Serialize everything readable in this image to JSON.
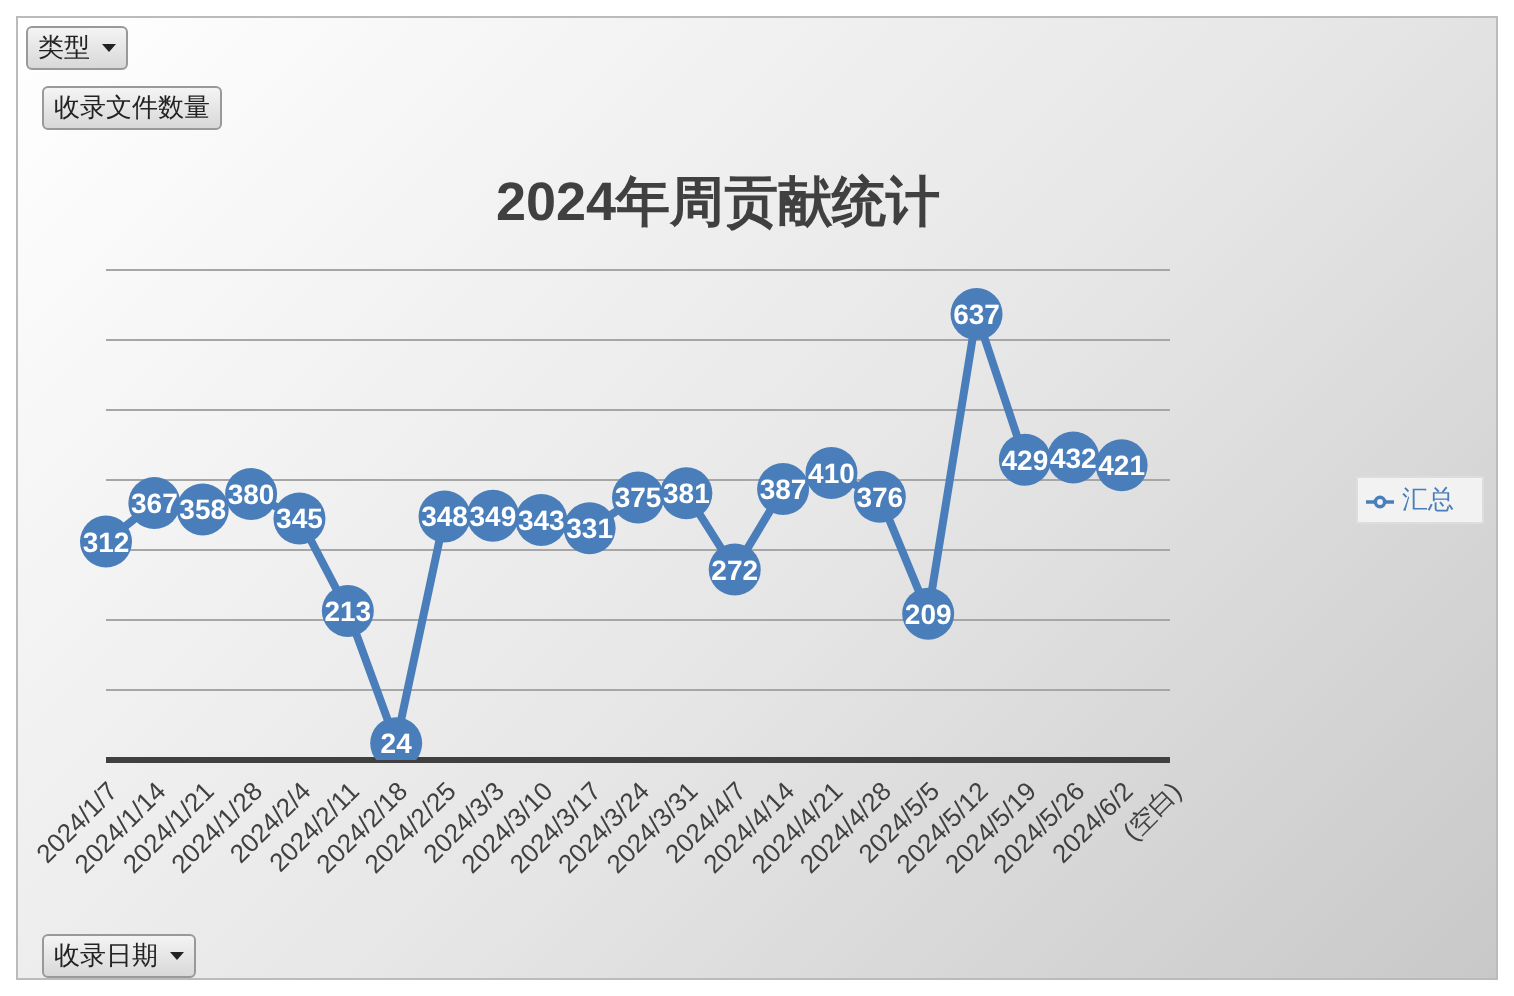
{
  "chart_data": {
    "type": "line",
    "title": "2024年周贡献统计",
    "categories": [
      "2024/1/7",
      "2024/1/14",
      "2024/1/21",
      "2024/1/28",
      "2024/2/4",
      "2024/2/11",
      "2024/2/18",
      "2024/2/25",
      "2024/3/3",
      "2024/3/10",
      "2024/3/17",
      "2024/3/24",
      "2024/3/31",
      "2024/4/7",
      "2024/4/14",
      "2024/4/21",
      "2024/4/28",
      "2024/5/5",
      "2024/5/12",
      "2024/5/19",
      "2024/5/26",
      "2024/6/2",
      "(空白)"
    ],
    "series": [
      {
        "name": "汇总",
        "color": "#4a7ebb",
        "values": [
          312,
          367,
          358,
          380,
          345,
          213,
          24,
          348,
          349,
          343,
          331,
          375,
          381,
          272,
          387,
          410,
          376,
          209,
          637,
          429,
          432,
          421,
          null
        ]
      }
    ],
    "ylim": [
      0,
      700
    ],
    "yticks": [
      {
        "value": 0,
        "label": null
      },
      {
        "value": 100,
        "label": null
      },
      {
        "value": 200,
        "label": null
      },
      {
        "value": 300,
        "label": null
      },
      {
        "value": 400,
        "label": null
      },
      {
        "value": 500,
        "label": null
      },
      {
        "value": 600,
        "label": null
      },
      {
        "value": 700,
        "label": null
      }
    ],
    "tick_labels": "x",
    "grid": "y",
    "legend": "right",
    "marker": "circle",
    "data_labels": true,
    "annotations": [
      "类型",
      "收录文件数量",
      "收录日期"
    ]
  }
}
